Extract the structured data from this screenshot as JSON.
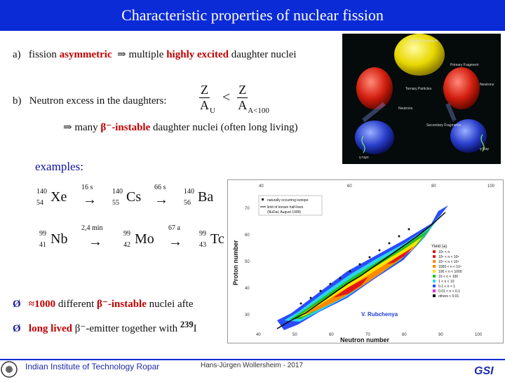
{
  "title": "Characteristic properties of nuclear fission",
  "item_a": {
    "label": "a)",
    "text1": "fission",
    "red1": "asymmetric",
    "arrow": "⇒",
    "text2": "multiple",
    "red2": "highly excited",
    "text3": "daughter nuclei"
  },
  "item_b": {
    "label": "b)",
    "text": "Neutron excess in the daughters:",
    "frac_num": "Z",
    "frac_den": "A",
    "sub_left": "U",
    "lt": "<",
    "sub_right": "A<100"
  },
  "beta_line": {
    "arrow": "⇒",
    "text1": "many",
    "red": "β⁻-instable",
    "text2": "daughter nuclei (often long living)"
  },
  "examples_label": "examples:",
  "chain1": {
    "n1": {
      "sym": "Xe",
      "a": "140",
      "z": "54"
    },
    "hl1": "16 s",
    "n2": {
      "sym": "Cs",
      "a": "140",
      "z": "55"
    },
    "hl2": "66 s",
    "n3": {
      "sym": "Ba",
      "a": "140",
      "z": "56"
    }
  },
  "chain2": {
    "n1": {
      "sym": "Nb",
      "a": "99",
      "z": "41"
    },
    "hl1": "2,4 min",
    "n2": {
      "sym": "Mo",
      "a": "99",
      "z": "42"
    },
    "hl2": "67 a",
    "n3": {
      "sym": "Tc",
      "a": "99",
      "z": "43"
    }
  },
  "arrow_right": "→",
  "bullet1": {
    "marker": "Ø",
    "approx": "≈1000",
    "text1": "different",
    "red": "β⁻-instable",
    "text2": "nuclei afte"
  },
  "bullet2": {
    "marker": "Ø",
    "red": "long lived",
    "text1": "β⁻-emitter together with",
    "sup": "239",
    "text2": "I"
  },
  "illustration": {
    "labels": [
      "Primary Fragment",
      "Primary Fragment",
      "Ternary Particles",
      "Neutrons",
      "Neutrons",
      "Secondary Fragments",
      "γ-rays",
      "γ-Ray"
    ]
  },
  "chart": {
    "xlabel": "Neutron number",
    "ylabel": "Proton number",
    "xticks": [
      "40",
      "60",
      "80",
      "100"
    ],
    "xticks_bottom": [
      "40",
      "50",
      "60",
      "70",
      "80",
      "90",
      "100"
    ],
    "yticks": [
      "70",
      "60",
      "50",
      "40",
      "30"
    ],
    "legend": [
      "naturally occurring isotope",
      "limit of known half-lives",
      "(NuDat, August 1999)"
    ],
    "yield_label": "Yield (a)",
    "yield_lines": [
      "10⁶ < n",
      "10⁵ < n < 10⁶",
      "10⁴ < n < 10⁵",
      "1000 < n < 10⁴",
      "100 < n < 1000",
      "10 < n < 100",
      "1 < n < 10",
      "0.1 < n < 1",
      "0.01 < n < 0.1",
      "others < 0.01"
    ],
    "credit": "V. Rubchenya",
    "colors": {
      "red": "#e21818",
      "orange": "#ff8a00",
      "yellow": "#ffe400",
      "green": "#22c21f",
      "cyan": "#2ad4e8",
      "blue": "#2b4bff",
      "magenta": "#e22ad2"
    }
  },
  "footer": {
    "institute": "Indian Institute of Technology Ropar",
    "author": "Hans-Jürgen Wollersheim - 2017",
    "gsi": "GSI"
  }
}
